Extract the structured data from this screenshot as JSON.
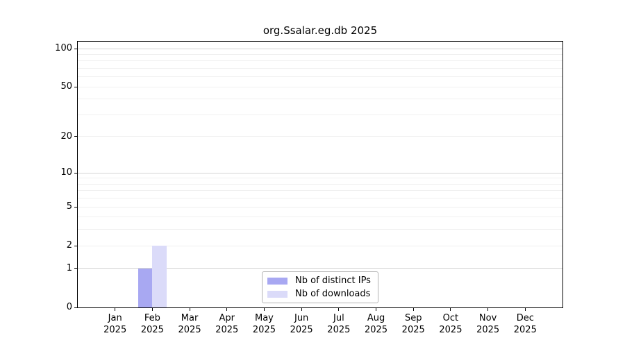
{
  "chart_data": {
    "type": "bar",
    "title": "org.Ssalar.eg.db 2025",
    "categories": [
      "Jan",
      "Feb",
      "Mar",
      "Apr",
      "May",
      "Jun",
      "Jul",
      "Aug",
      "Sep",
      "Oct",
      "Nov",
      "Dec"
    ],
    "x_tick_year": "2025",
    "series": [
      {
        "name": "Nb of distinct IPs",
        "color": "#a8a8f2",
        "values": [
          0,
          1,
          0,
          0,
          0,
          0,
          0,
          0,
          0,
          0,
          0,
          0
        ]
      },
      {
        "name": "Nb of downloads",
        "color": "#dbdbf9",
        "values": [
          0,
          2,
          0,
          0,
          0,
          0,
          0,
          0,
          0,
          0,
          0,
          0
        ]
      }
    ],
    "yticks": [
      0,
      1,
      2,
      5,
      10,
      20,
      50,
      100
    ],
    "scale": "log1p",
    "ylim": [
      0,
      113
    ],
    "xlabel": "",
    "ylabel": "",
    "grid": {
      "orientation": "horizontal",
      "major_values": [
        1,
        10,
        100
      ],
      "minor_values": [
        2,
        3,
        4,
        5,
        6,
        7,
        8,
        9,
        20,
        30,
        40,
        50,
        60,
        70,
        80,
        90
      ],
      "major_color": "#d4d4d4",
      "minor_color": "#f0f0f0"
    },
    "legend": {
      "position": "lower-center",
      "border_color": "#b3b3b3"
    }
  }
}
